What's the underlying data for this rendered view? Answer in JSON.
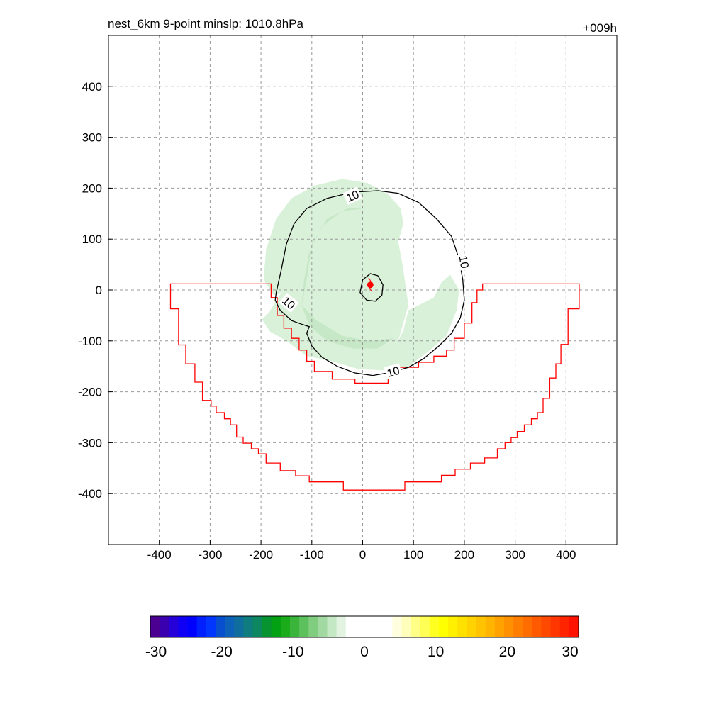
{
  "title": "nest_6km  9-point minslp: 1010.8hPa",
  "time_label": "+009h",
  "chart_data": {
    "type": "contour",
    "xlim": [
      -500,
      500
    ],
    "ylim": [
      -500,
      500
    ],
    "grid": true,
    "x_ticks": [
      -400,
      -300,
      -200,
      -100,
      0,
      100,
      200,
      300,
      400
    ],
    "y_ticks": [
      400,
      300,
      200,
      100,
      0,
      -100,
      -200,
      -300,
      -400
    ],
    "contour_level_label": "10",
    "contour_10": [
      [
        -170,
        -5
      ],
      [
        -160,
        40
      ],
      [
        -150,
        90
      ],
      [
        -135,
        130
      ],
      [
        -110,
        160
      ],
      [
        -70,
        180
      ],
      [
        -20,
        192
      ],
      [
        30,
        195
      ],
      [
        70,
        190
      ],
      [
        110,
        172
      ],
      [
        145,
        140
      ],
      [
        175,
        105
      ],
      [
        190,
        60
      ],
      [
        197,
        20
      ],
      [
        200,
        -20
      ],
      [
        192,
        -55
      ],
      [
        175,
        -85
      ],
      [
        150,
        -110
      ],
      [
        120,
        -135
      ],
      [
        90,
        -152
      ],
      [
        55,
        -162
      ],
      [
        20,
        -168
      ],
      [
        -15,
        -163
      ],
      [
        -50,
        -150
      ],
      [
        -80,
        -132
      ],
      [
        -100,
        -110
      ],
      [
        -110,
        -85
      ],
      [
        -105,
        -72
      ],
      [
        -118,
        -68
      ],
      [
        -140,
        -60
      ],
      [
        -162,
        -40
      ],
      [
        -172,
        -20
      ],
      [
        -170,
        -5
      ]
    ],
    "center_contour": [
      [
        0,
        20
      ],
      [
        15,
        32
      ],
      [
        30,
        28
      ],
      [
        40,
        10
      ],
      [
        38,
        -10
      ],
      [
        25,
        -22
      ],
      [
        8,
        -20
      ],
      [
        -5,
        -5
      ],
      [
        0,
        20
      ]
    ],
    "storm_center": [
      15,
      10
    ],
    "boundary": [
      [
        -378,
        12
      ],
      [
        -378,
        -37
      ],
      [
        -362,
        -37
      ],
      [
        -362,
        -108
      ],
      [
        -348,
        -108
      ],
      [
        -348,
        -145
      ],
      [
        -330,
        -145
      ],
      [
        -330,
        -181
      ],
      [
        -315,
        -181
      ],
      [
        -315,
        -217
      ],
      [
        -298,
        -217
      ],
      [
        -298,
        -228
      ],
      [
        -288,
        -228
      ],
      [
        -288,
        -241
      ],
      [
        -272,
        -241
      ],
      [
        -272,
        -253
      ],
      [
        -260,
        -253
      ],
      [
        -260,
        -265
      ],
      [
        -248,
        -265
      ],
      [
        -248,
        -289
      ],
      [
        -235,
        -289
      ],
      [
        -235,
        -301
      ],
      [
        -219,
        -301
      ],
      [
        -219,
        -312
      ],
      [
        -205,
        -312
      ],
      [
        -205,
        -322
      ],
      [
        -190,
        -322
      ],
      [
        -190,
        -340
      ],
      [
        -162,
        -340
      ],
      [
        -162,
        -355
      ],
      [
        -132,
        -355
      ],
      [
        -132,
        -365
      ],
      [
        -105,
        -365
      ],
      [
        -105,
        -377
      ],
      [
        -38,
        -377
      ],
      [
        -38,
        -393
      ],
      [
        83,
        -393
      ],
      [
        83,
        -377
      ],
      [
        155,
        -377
      ],
      [
        155,
        -364
      ],
      [
        182,
        -364
      ],
      [
        182,
        -352
      ],
      [
        212,
        -352
      ],
      [
        212,
        -340
      ],
      [
        240,
        -340
      ],
      [
        240,
        -330
      ],
      [
        265,
        -330
      ],
      [
        265,
        -312
      ],
      [
        280,
        -312
      ],
      [
        280,
        -300
      ],
      [
        292,
        -300
      ],
      [
        292,
        -290
      ],
      [
        304,
        -290
      ],
      [
        304,
        -278
      ],
      [
        318,
        -278
      ],
      [
        318,
        -265
      ],
      [
        332,
        -265
      ],
      [
        332,
        -253
      ],
      [
        344,
        -253
      ],
      [
        344,
        -241
      ],
      [
        355,
        -241
      ],
      [
        355,
        -213
      ],
      [
        368,
        -213
      ],
      [
        368,
        -173
      ],
      [
        380,
        -173
      ],
      [
        380,
        -145
      ],
      [
        390,
        -145
      ],
      [
        390,
        -107
      ],
      [
        404,
        -107
      ],
      [
        404,
        -37
      ],
      [
        426,
        -37
      ],
      [
        426,
        12
      ],
      [
        236,
        12
      ],
      [
        236,
        0
      ],
      [
        225,
        0
      ],
      [
        225,
        -25
      ],
      [
        215,
        -25
      ],
      [
        215,
        -65
      ],
      [
        200,
        -65
      ],
      [
        200,
        -95
      ],
      [
        180,
        -95
      ],
      [
        180,
        -118
      ],
      [
        165,
        -118
      ],
      [
        165,
        -130
      ],
      [
        140,
        -130
      ],
      [
        140,
        -142
      ],
      [
        110,
        -142
      ],
      [
        110,
        -152
      ],
      [
        70,
        -152
      ],
      [
        70,
        -162
      ],
      [
        50,
        -162
      ],
      [
        50,
        -183
      ],
      [
        -15,
        -183
      ],
      [
        -15,
        -175
      ],
      [
        -60,
        -175
      ],
      [
        -60,
        -160
      ],
      [
        -95,
        -160
      ],
      [
        -95,
        -140
      ],
      [
        -110,
        -140
      ],
      [
        -110,
        -118
      ],
      [
        -125,
        -118
      ],
      [
        -125,
        -95
      ],
      [
        -140,
        -95
      ],
      [
        -140,
        -75
      ],
      [
        -155,
        -75
      ],
      [
        -155,
        -50
      ],
      [
        -168,
        -50
      ],
      [
        -168,
        -15
      ],
      [
        -180,
        -15
      ],
      [
        -180,
        12
      ],
      [
        -378,
        12
      ]
    ],
    "green_band_outer": [
      [
        -160,
        -5
      ],
      [
        -185,
        -45
      ],
      [
        -198,
        -58
      ],
      [
        -182,
        -82
      ],
      [
        -150,
        -100
      ],
      [
        -110,
        -130
      ],
      [
        -60,
        -140
      ],
      [
        -10,
        -155
      ],
      [
        40,
        -158
      ],
      [
        90,
        -150
      ],
      [
        130,
        -120
      ],
      [
        165,
        -90
      ],
      [
        185,
        -40
      ],
      [
        190,
        0
      ],
      [
        172,
        30
      ],
      [
        155,
        15
      ],
      [
        140,
        -15
      ],
      [
        110,
        -30
      ],
      [
        90,
        -40
      ],
      [
        80,
        -80
      ],
      [
        70,
        -100
      ],
      [
        90,
        -30
      ],
      [
        80,
        40
      ],
      [
        70,
        95
      ],
      [
        80,
        130
      ],
      [
        75,
        160
      ],
      [
        50,
        188
      ],
      [
        10,
        210
      ],
      [
        -40,
        218
      ],
      [
        -95,
        205
      ],
      [
        -140,
        180
      ],
      [
        -170,
        140
      ],
      [
        -190,
        80
      ],
      [
        -195,
        20
      ],
      [
        -175,
        -10
      ],
      [
        -160,
        -5
      ]
    ],
    "green_band_inner": [
      [
        -110,
        20
      ],
      [
        -100,
        90
      ],
      [
        -70,
        140
      ],
      [
        -30,
        160
      ],
      [
        20,
        162
      ],
      [
        -40,
        155
      ],
      [
        -80,
        125
      ],
      [
        -105,
        75
      ],
      [
        -115,
        20
      ],
      [
        -120,
        -30
      ],
      [
        -90,
        -60
      ],
      [
        -40,
        -90
      ],
      [
        10,
        -100
      ],
      [
        60,
        -95
      ],
      [
        30,
        -115
      ],
      [
        -20,
        -115
      ],
      [
        -70,
        -100
      ],
      [
        -105,
        -70
      ],
      [
        -120,
        -30
      ],
      [
        -110,
        20
      ]
    ],
    "colorbar": {
      "min": -30,
      "max": 30,
      "tick_labels": [
        "-30",
        "-20",
        "-10",
        "0",
        "10",
        "20",
        "30"
      ],
      "colors": [
        "#4b0092",
        "#3a00b0",
        "#2600d8",
        "#0f00f5",
        "#0000ff",
        "#0020ff",
        "#0036ff",
        "#084fd0",
        "#0e61b8",
        "#0f6e9e",
        "#0f7d80",
        "#0c8760",
        "#07932f",
        "#02a013",
        "#1bac1b",
        "#3bb43b",
        "#5cc05c",
        "#80cd80",
        "#a2d9a2",
        "#c4e7c4",
        "#e2f3e2",
        "#ffffff",
        "#ffffff",
        "#ffffff",
        "#ffffff",
        "#ffffff",
        "#ffffe0",
        "#ffffbb",
        "#ffff88",
        "#ffff55",
        "#ffff22",
        "#ffff00",
        "#fff000",
        "#ffe100",
        "#ffd200",
        "#ffc300",
        "#ffb400",
        "#ffa200",
        "#ff9000",
        "#ff7e00",
        "#ff6c00",
        "#ff5a00",
        "#ff4800",
        "#ff3600",
        "#ff2400",
        "#ff1200"
      ]
    }
  }
}
